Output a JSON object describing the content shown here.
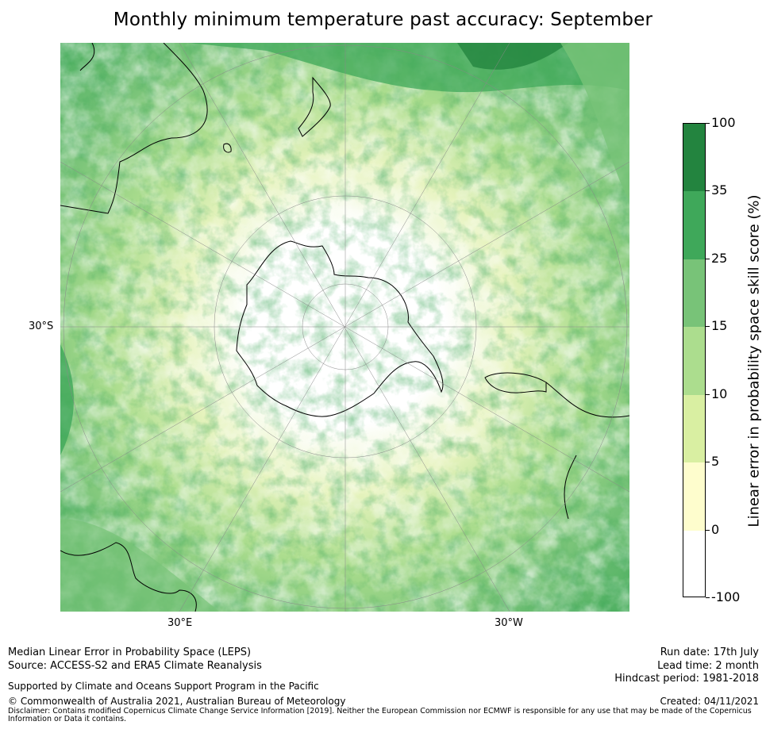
{
  "title": "Monthly minimum temperature past accuracy: September",
  "map": {
    "lat_labels": [
      "30°S"
    ],
    "lon_labels": [
      "30°E",
      "30°W"
    ]
  },
  "colorbar": {
    "label": "Linear error in probability space skill score (%)",
    "ticks": [
      "100",
      "35",
      "25",
      "15",
      "10",
      "5",
      "0",
      "-100"
    ],
    "colors": [
      "#23843f",
      "#3fa85a",
      "#78c378",
      "#acdd8e",
      "#d9efa2",
      "#fefdcd",
      "#ffffff"
    ]
  },
  "footer": {
    "left_line1": "Median Linear Error in Probability Space (LEPS)",
    "left_line2": "Source: ACCESS-S2 and ERA5 Climate Reanalysis",
    "support": "Supported by Climate and Oceans Support Program in the Pacific",
    "copyright": "© Commonwealth of Australia 2021, Australian Bureau of Meteorology",
    "disclaimer": "Disclaimer: Contains modified Copernicus Climate Change Service Information [2019]. Neither the European Commission nor ECMWF is responsible for any use that may be made of the Copernicus Information or Data it contains.",
    "run_date": "Run date: 17th July",
    "lead_time": "Lead time: 2 month",
    "hindcast": "Hindcast period: 1981-2018",
    "created": "Created: 04/11/2021"
  }
}
